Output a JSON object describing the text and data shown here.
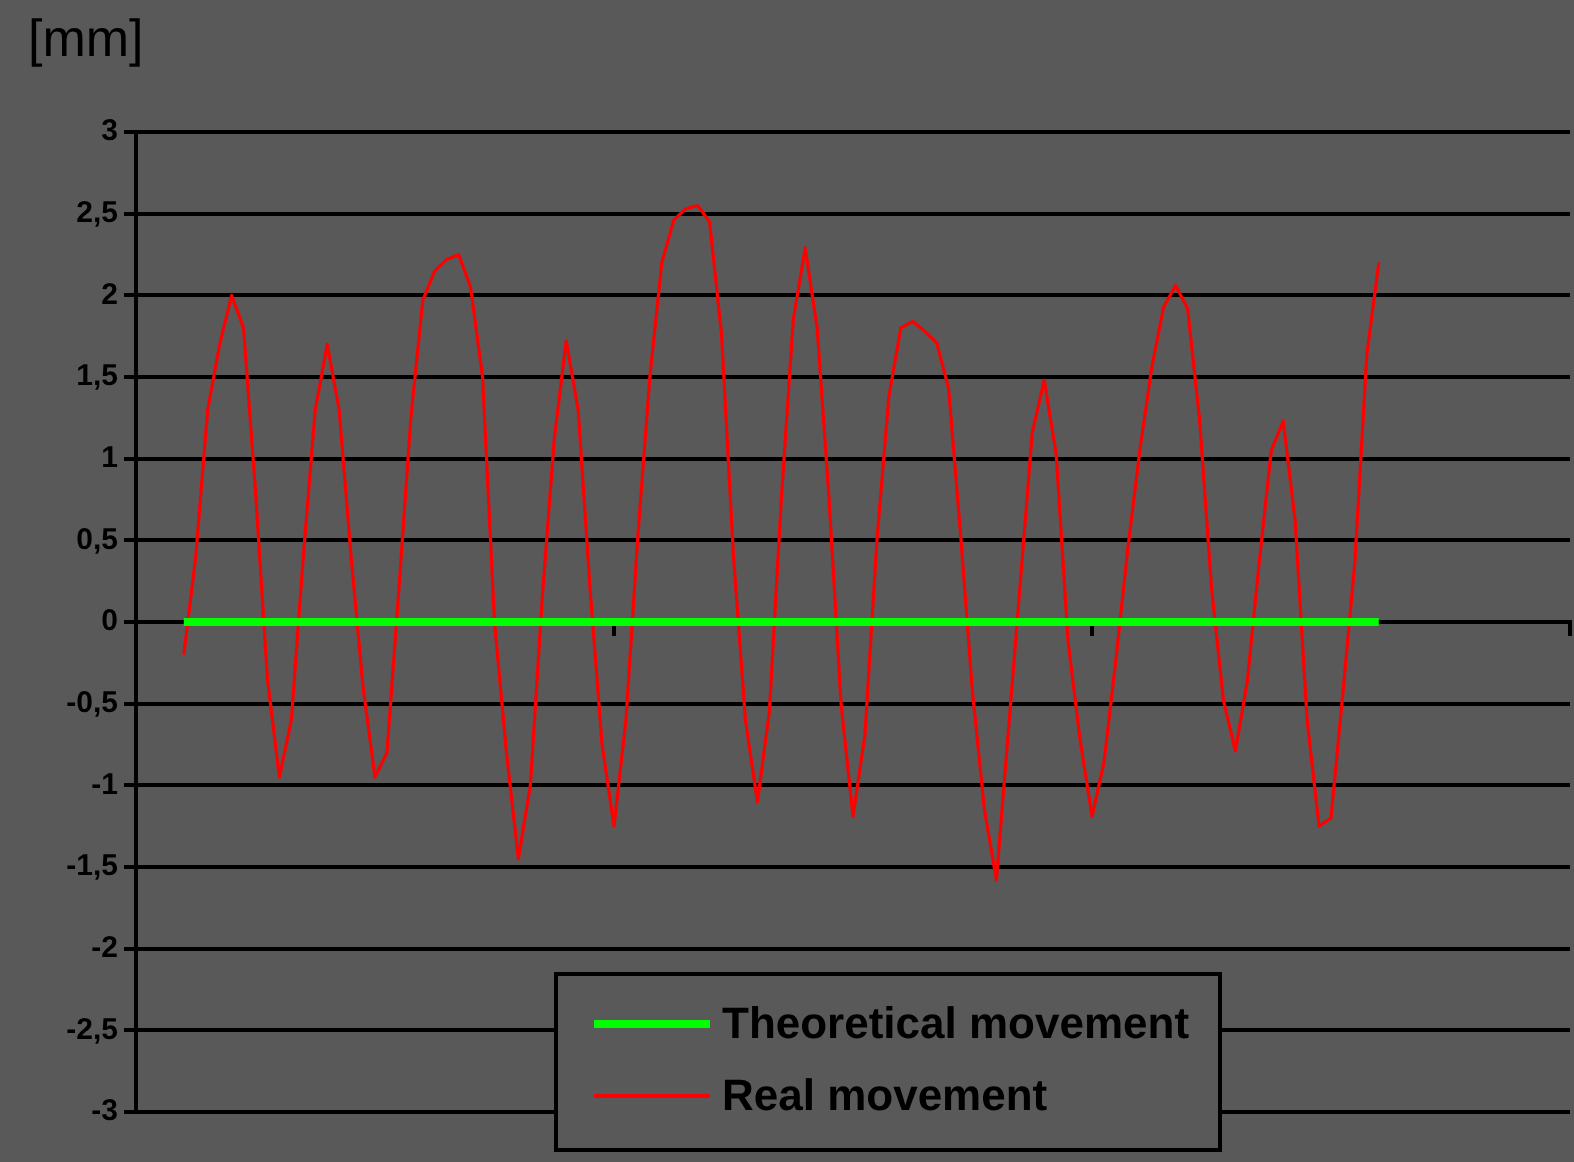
{
  "chart_data": {
    "type": "line",
    "ylabel": "[mm]",
    "categories": [
      null,
      null,
      null,
      null,
      null,
      null,
      null,
      null,
      null,
      null,
      null,
      null,
      null,
      null,
      null,
      null,
      null,
      null,
      null,
      null,
      null,
      null,
      null,
      null,
      null,
      null,
      null,
      null,
      null,
      null,
      null,
      null,
      null,
      null,
      null,
      null,
      null,
      null,
      null,
      null,
      null,
      null,
      null,
      null,
      null,
      null,
      null,
      null,
      null,
      null,
      null,
      null,
      null,
      null,
      null,
      null,
      null,
      null,
      null,
      null,
      null,
      null,
      null,
      null,
      null,
      null,
      null,
      null,
      null,
      null,
      null,
      null,
      null,
      null,
      null,
      null,
      null,
      null,
      null,
      null,
      null,
      null,
      null,
      null,
      null,
      null,
      null,
      null,
      null,
      null,
      null,
      null,
      null,
      null,
      null,
      null,
      null,
      null,
      null,
      null,
      null,
      null,
      null,
      null,
      null,
      null,
      null,
      null,
      null,
      null,
      null,
      null,
      null,
      null,
      null,
      null,
      null,
      null,
      null,
      null,
      null
    ],
    "series": [
      {
        "name": "Theoretical movement",
        "color": "#00ff00",
        "values": [
          null,
          null,
          null,
          null,
          0,
          0,
          0,
          0,
          0,
          0,
          0,
          0,
          0,
          0,
          0,
          0,
          0,
          0,
          0,
          0,
          0,
          0,
          0,
          0,
          0,
          0,
          0,
          0,
          0,
          0,
          0,
          0,
          0,
          0,
          0,
          0,
          0,
          0,
          0,
          0,
          0,
          0,
          0,
          0,
          0,
          0,
          0,
          0,
          0,
          0,
          0,
          0,
          0,
          0,
          0,
          0,
          0,
          0,
          0,
          0,
          0,
          0,
          0,
          0,
          0,
          0,
          0,
          0,
          0,
          0,
          0,
          0,
          0,
          0,
          0,
          0,
          0,
          0,
          0,
          0,
          0,
          0,
          0,
          0,
          0,
          0,
          0,
          0,
          0,
          0,
          0,
          0,
          0,
          0,
          0,
          0,
          0,
          0,
          0,
          0,
          0,
          0,
          0,
          0,
          0,
          null,
          null,
          null,
          null,
          null,
          null,
          null,
          null,
          null,
          null,
          null,
          null,
          null,
          null,
          null,
          null
        ]
      },
      {
        "name": "Real movement",
        "color": "#ff0000",
        "values": [
          null,
          null,
          null,
          null,
          -0.2,
          0.4,
          1.3,
          1.7,
          2.0,
          1.8,
          0.8,
          -0.35,
          -0.95,
          -0.6,
          0.4,
          1.3,
          1.7,
          1.3,
          0.4,
          -0.4,
          -0.95,
          -0.8,
          0.2,
          1.25,
          1.97,
          2.15,
          2.22,
          2.25,
          2.05,
          1.5,
          0,
          -0.8,
          -1.45,
          -1.0,
          0.15,
          1.12,
          1.72,
          1.3,
          0.2,
          -0.75,
          -1.25,
          -0.6,
          0.53,
          1.5,
          2.2,
          2.46,
          2.53,
          2.55,
          2.45,
          1.76,
          0.4,
          -0.6,
          -1.1,
          -0.55,
          0.75,
          1.85,
          2.29,
          1.8,
          0.75,
          -0.5,
          -1.19,
          -0.69,
          0.5,
          1.38,
          1.8,
          1.84,
          1.78,
          1.71,
          1.43,
          0.54,
          -0.43,
          -1.15,
          -1.58,
          -0.67,
          0.24,
          1.16,
          1.48,
          1.03,
          -0.12,
          -0.72,
          -1.19,
          -0.86,
          -0.23,
          0.45,
          1.05,
          1.56,
          1.93,
          2.06,
          1.92,
          1.24,
          0.21,
          -0.48,
          -0.79,
          -0.36,
          0.37,
          1.05,
          1.23,
          0.62,
          -0.6,
          -1.25,
          -1.2,
          -0.43,
          0.37,
          1.64,
          2.2,
          null,
          null,
          null,
          null,
          null,
          null,
          null,
          null,
          null,
          null,
          null,
          null,
          null,
          null,
          null,
          null
        ]
      }
    ],
    "ylim": [
      -3,
      3
    ],
    "yticks": [
      3,
      {
        "value": 2.5,
        "label": "2,5"
      },
      2,
      {
        "value": 1.5,
        "label": "1,5"
      },
      1,
      {
        "value": 0.5,
        "label": "0,5"
      },
      0,
      {
        "value": -0.5,
        "label": "-0,5"
      },
      -1,
      {
        "value": -1.5,
        "label": "-1,5"
      },
      -2,
      {
        "value": -2.5,
        "label": "-2,5"
      },
      -3
    ],
    "grid": "y",
    "legend": "bottom",
    "marker": "none"
  }
}
